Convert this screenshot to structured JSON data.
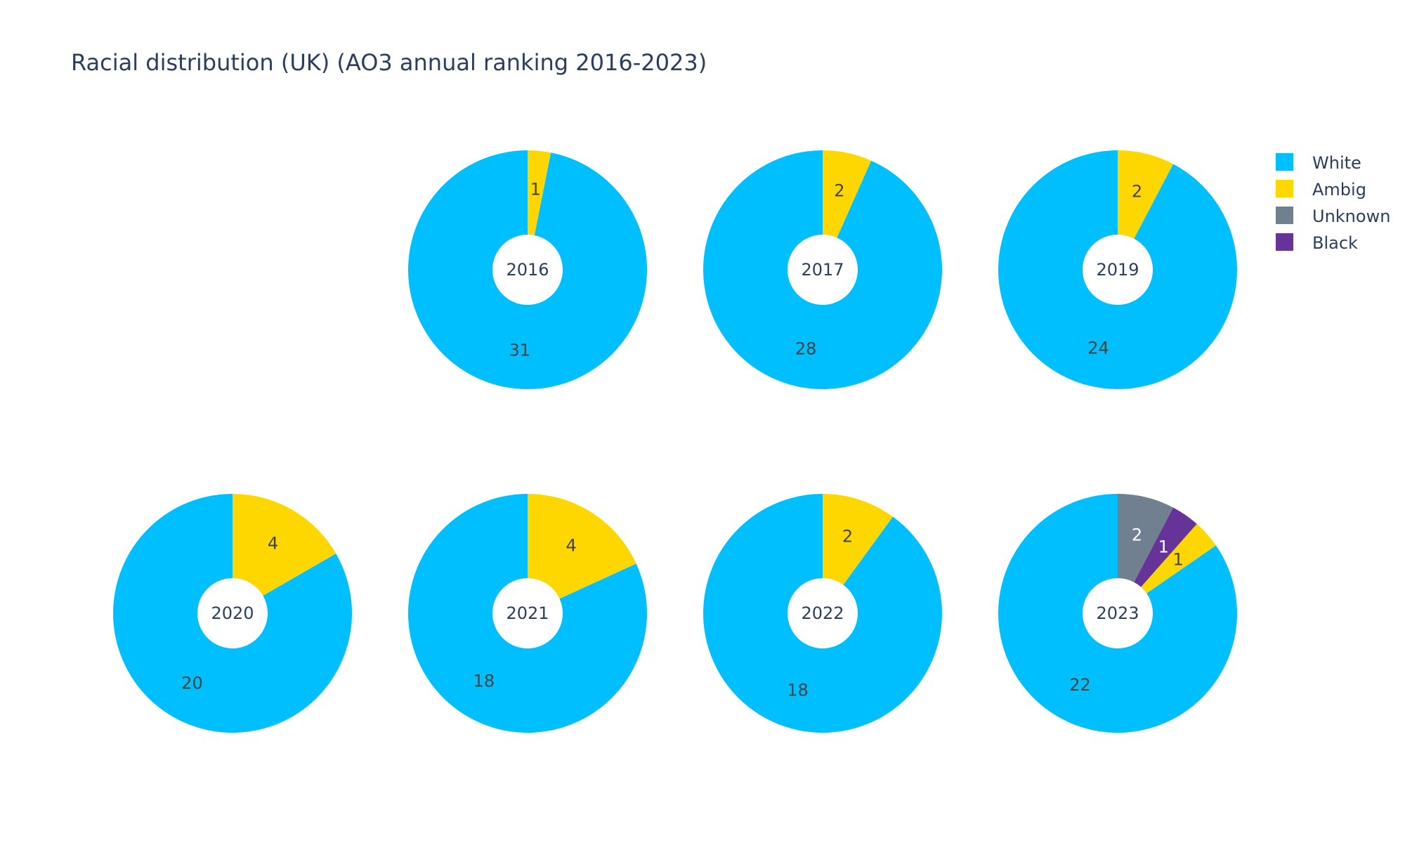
{
  "chart_data": {
    "type": "pie",
    "title": "Racial distribution (UK) (AO3 annual ranking 2016-2023)",
    "hole": true,
    "legend_position": "top-right",
    "legend": [
      {
        "name": "White",
        "color": "#00bfff"
      },
      {
        "name": "Ambig",
        "color": "#ffd700"
      },
      {
        "name": "Unknown",
        "color": "#708090"
      },
      {
        "name": "Black",
        "color": "#663399"
      }
    ],
    "pies": [
      {
        "label": "2016",
        "slices": [
          {
            "name": "White",
            "value": 31
          },
          {
            "name": "Ambig",
            "value": 1
          }
        ]
      },
      {
        "label": "2017",
        "slices": [
          {
            "name": "White",
            "value": 28
          },
          {
            "name": "Ambig",
            "value": 2
          }
        ]
      },
      {
        "label": "2019",
        "slices": [
          {
            "name": "White",
            "value": 24
          },
          {
            "name": "Ambig",
            "value": 2
          }
        ]
      },
      {
        "label": "2020",
        "slices": [
          {
            "name": "White",
            "value": 20
          },
          {
            "name": "Ambig",
            "value": 4
          }
        ]
      },
      {
        "label": "2021",
        "slices": [
          {
            "name": "White",
            "value": 18
          },
          {
            "name": "Ambig",
            "value": 4
          }
        ]
      },
      {
        "label": "2022",
        "slices": [
          {
            "name": "White",
            "value": 18
          },
          {
            "name": "Ambig",
            "value": 2
          }
        ]
      },
      {
        "label": "2023",
        "slices": [
          {
            "name": "White",
            "value": 22
          },
          {
            "name": "Ambig",
            "value": 1
          },
          {
            "name": "Black",
            "value": 1
          },
          {
            "name": "Unknown",
            "value": 2
          }
        ]
      }
    ]
  }
}
